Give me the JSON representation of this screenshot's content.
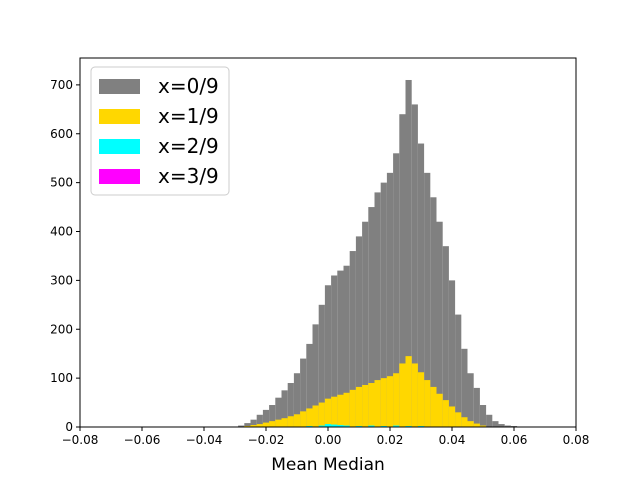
{
  "chart_data": {
    "type": "bar",
    "subtype": "overlaid histogram",
    "xlabel": "Mean Median",
    "ylabel": "",
    "title": "",
    "xlim": [
      -0.08,
      0.08
    ],
    "ylim": [
      0,
      755
    ],
    "xticks": [
      -0.08,
      -0.06,
      -0.04,
      -0.02,
      0.0,
      0.02,
      0.04,
      0.06,
      0.08
    ],
    "xtick_labels": [
      "−0.08",
      "−0.06",
      "−0.04",
      "−0.02",
      "0.00",
      "0.02",
      "0.04",
      "0.06",
      "0.08"
    ],
    "yticks": [
      0,
      100,
      200,
      300,
      400,
      500,
      600,
      700
    ],
    "ytick_labels": [
      "0",
      "100",
      "200",
      "300",
      "400",
      "500",
      "600",
      "700"
    ],
    "grid": false,
    "legend_position": "top-left",
    "series": [
      {
        "name": "x=0/9",
        "color": "#808080",
        "x": [
          -0.03,
          -0.028,
          -0.026,
          -0.024,
          -0.022,
          -0.02,
          -0.018,
          -0.016,
          -0.014,
          -0.012,
          -0.01,
          -0.008,
          -0.006,
          -0.004,
          -0.002,
          0.0,
          0.002,
          0.004,
          0.006,
          0.008,
          0.01,
          0.012,
          0.014,
          0.016,
          0.018,
          0.02,
          0.022,
          0.024,
          0.026,
          0.028,
          0.03,
          0.032,
          0.034,
          0.036,
          0.038,
          0.04,
          0.042,
          0.044,
          0.046,
          0.048,
          0.05,
          0.052,
          0.054,
          0.056,
          0.058,
          0.06,
          0.062,
          0.064
        ],
        "values": [
          1,
          3,
          8,
          15,
          25,
          35,
          45,
          60,
          75,
          90,
          110,
          140,
          170,
          210,
          250,
          290,
          310,
          320,
          330,
          360,
          390,
          420,
          450,
          480,
          500,
          520,
          560,
          640,
          710,
          660,
          580,
          520,
          470,
          420,
          370,
          300,
          230,
          160,
          110,
          80,
          45,
          25,
          12,
          6,
          3,
          2,
          1,
          0
        ]
      },
      {
        "name": "x=1/9",
        "color": "#FFD700",
        "x": [
          -0.03,
          -0.028,
          -0.026,
          -0.024,
          -0.022,
          -0.02,
          -0.018,
          -0.016,
          -0.014,
          -0.012,
          -0.01,
          -0.008,
          -0.006,
          -0.004,
          -0.002,
          0.0,
          0.002,
          0.004,
          0.006,
          0.008,
          0.01,
          0.012,
          0.014,
          0.016,
          0.018,
          0.02,
          0.022,
          0.024,
          0.026,
          0.028,
          0.03,
          0.032,
          0.034,
          0.036,
          0.038,
          0.04,
          0.042,
          0.044,
          0.046,
          0.048,
          0.05,
          0.052,
          0.054,
          0.056,
          0.058,
          0.06,
          0.062,
          0.064
        ],
        "values": [
          0,
          1,
          2,
          4,
          6,
          9,
          12,
          15,
          18,
          22,
          26,
          32,
          38,
          44,
          50,
          58,
          62,
          66,
          70,
          76,
          82,
          86,
          90,
          96,
          100,
          104,
          110,
          130,
          145,
          130,
          112,
          96,
          82,
          68,
          55,
          42,
          30,
          20,
          12,
          7,
          3,
          1,
          0,
          0,
          0,
          0,
          0,
          0
        ]
      },
      {
        "name": "x=2/9",
        "color": "#00FFFF",
        "x": [
          -0.01,
          -0.006,
          -0.002,
          0.0,
          0.002,
          0.004,
          0.006,
          0.01,
          0.014,
          0.018,
          0.022,
          0.026,
          0.03,
          0.034,
          0.038
        ],
        "values": [
          1,
          2,
          3,
          6,
          5,
          4,
          3,
          2,
          3,
          2,
          3,
          2,
          2,
          1,
          1
        ]
      },
      {
        "name": "x=3/9",
        "color": "#FF00FF",
        "x": [],
        "values": []
      }
    ]
  }
}
